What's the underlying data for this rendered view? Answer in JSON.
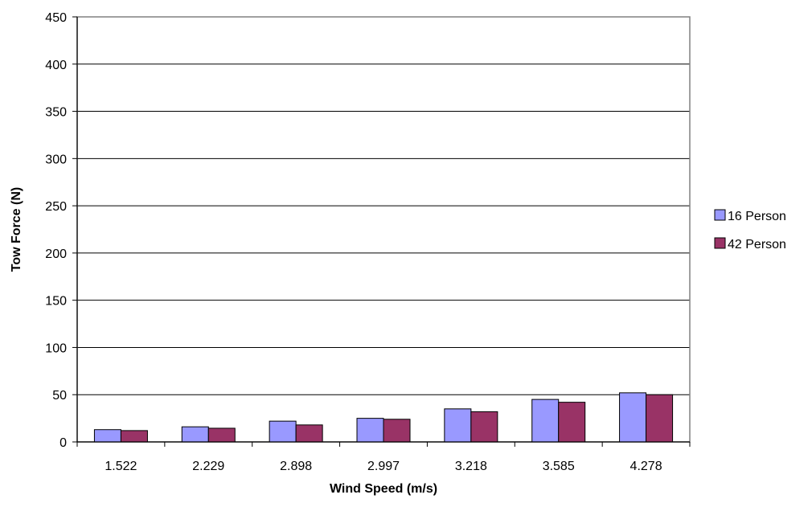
{
  "chart_data": {
    "type": "bar",
    "title": "",
    "xlabel": "Wind Speed (m/s)",
    "ylabel": "Tow Force (N)",
    "categories": [
      "1.522",
      "2.229",
      "2.898",
      "2.997",
      "3.218",
      "3.585",
      "4.278"
    ],
    "series": [
      {
        "name": "16 Person",
        "color": "#9999ff",
        "values": [
          13,
          16,
          22,
          25,
          35,
          45,
          52
        ]
      },
      {
        "name": "42 Person",
        "color": "#993366",
        "values": [
          12,
          14.5,
          18,
          24,
          32,
          42,
          50
        ]
      }
    ],
    "ylim": [
      0,
      450
    ],
    "yticks": [
      "0",
      "50",
      "100",
      "150",
      "200",
      "250",
      "300",
      "350",
      "400",
      "450"
    ],
    "grid": "horizontal",
    "legend_position": "right"
  }
}
